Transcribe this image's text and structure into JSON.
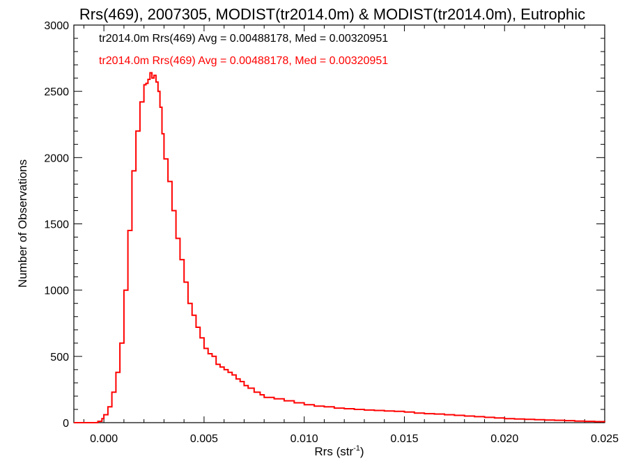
{
  "chart_data": {
    "type": "histogram-step",
    "title": "Rrs(469), 2007305, MODIST(tr2014.0m) & MODIST(tr2014.0m), Eutrophic",
    "xlabel_base": "Rrs (str",
    "xlabel_sup": "-1",
    "xlabel_close": ")",
    "ylabel": "Number of Observations",
    "xlim": [
      -0.0015,
      0.025
    ],
    "ylim": [
      0,
      3000
    ],
    "xticks": [
      0.0,
      0.005,
      0.01,
      0.015,
      0.02,
      0.025
    ],
    "xtick_labels": [
      "0.000",
      "0.005",
      "0.010",
      "0.015",
      "0.020",
      "0.025"
    ],
    "yticks": [
      0,
      500,
      1000,
      1500,
      2000,
      2500,
      3000
    ],
    "ytick_labels": [
      "0",
      "500",
      "1000",
      "1500",
      "2000",
      "2500",
      "3000"
    ],
    "grid": false,
    "legend": [
      {
        "text": "tr2014.0m Rrs(469) Avg = 0.00488178, Med = 0.00320951",
        "color": "#000000"
      },
      {
        "text": "tr2014.0m Rrs(469) Avg = 0.00488178, Med = 0.00320951",
        "color": "#ff0000"
      }
    ],
    "series": [
      {
        "color": "#ff0000",
        "x": [
          -0.0015,
          -0.0005,
          -0.0003,
          -0.0001,
          0.0,
          0.0002,
          0.0004,
          0.0006,
          0.0008,
          0.001,
          0.0012,
          0.0014,
          0.0016,
          0.0018,
          0.002,
          0.0021,
          0.0022,
          0.0023,
          0.0024,
          0.0025,
          0.0026,
          0.0027,
          0.0028,
          0.0029,
          0.003,
          0.0032,
          0.0034,
          0.0036,
          0.0038,
          0.004,
          0.0042,
          0.0044,
          0.0046,
          0.0048,
          0.005,
          0.0052,
          0.0054,
          0.0056,
          0.0058,
          0.006,
          0.0062,
          0.0064,
          0.0066,
          0.0068,
          0.007,
          0.0072,
          0.0075,
          0.0078,
          0.008,
          0.0085,
          0.009,
          0.0095,
          0.01,
          0.0105,
          0.011,
          0.0115,
          0.012,
          0.0125,
          0.013,
          0.0135,
          0.014,
          0.0145,
          0.015,
          0.0155,
          0.016,
          0.0165,
          0.017,
          0.0175,
          0.018,
          0.0185,
          0.019,
          0.0195,
          0.02,
          0.0205,
          0.021,
          0.0215,
          0.022,
          0.0225,
          0.023,
          0.0235,
          0.024,
          0.0245,
          0.025
        ],
        "y": [
          0,
          0,
          10,
          30,
          60,
          120,
          230,
          380,
          600,
          1000,
          1450,
          1900,
          2200,
          2420,
          2550,
          2560,
          2590,
          2640,
          2600,
          2620,
          2570,
          2500,
          2380,
          2180,
          1990,
          1820,
          1600,
          1390,
          1230,
          1060,
          900,
          810,
          720,
          640,
          560,
          520,
          500,
          440,
          420,
          400,
          380,
          360,
          330,
          310,
          280,
          260,
          230,
          210,
          190,
          180,
          165,
          150,
          135,
          125,
          120,
          110,
          105,
          100,
          95,
          92,
          88,
          85,
          80,
          72,
          68,
          65,
          60,
          55,
          50,
          45,
          40,
          35,
          30,
          28,
          25,
          22,
          20,
          18,
          15,
          12,
          10,
          8,
          5
        ]
      }
    ]
  }
}
